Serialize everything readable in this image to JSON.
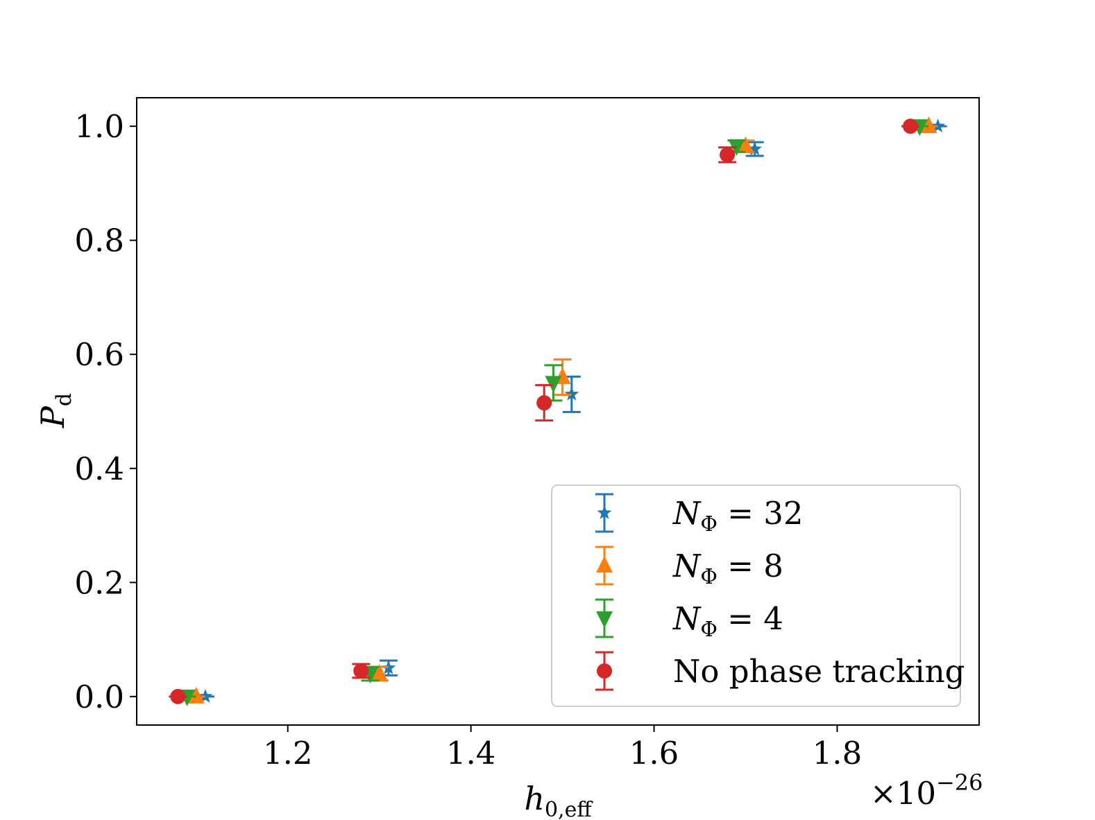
{
  "chart_data": {
    "type": "scatter",
    "title": "",
    "xlabel": {
      "main": "h",
      "sub": "0,eff"
    },
    "ylabel": {
      "main": "P",
      "sub": "d"
    },
    "x_multiplier": {
      "base": "×10",
      "exponent": "−26"
    },
    "xlim": [
      1.035,
      1.955
    ],
    "ylim": [
      -0.05,
      1.05
    ],
    "x_ticks": [
      1.2,
      1.4,
      1.6,
      1.8
    ],
    "x_tick_labels": [
      "1.2",
      "1.4",
      "1.6",
      "1.8"
    ],
    "y_ticks": [
      0.0,
      0.2,
      0.4,
      0.6,
      0.8,
      1.0
    ],
    "y_tick_labels": [
      "0.0",
      "0.2",
      "0.4",
      "0.6",
      "0.8",
      "1.0"
    ],
    "grid": false,
    "legend_position": "lower-right",
    "series": [
      {
        "name": "N_Φ = 32",
        "legend": {
          "main": "N",
          "sub": "Φ",
          "rest": " = 32"
        },
        "color": "#1f77b4",
        "marker": "star",
        "points": [
          {
            "x": 1.11,
            "y": 0.0,
            "err": 0.0
          },
          {
            "x": 1.31,
            "y": 0.05,
            "err": 0.013
          },
          {
            "x": 1.51,
            "y": 0.53,
            "err": 0.031
          },
          {
            "x": 1.71,
            "y": 0.96,
            "err": 0.012
          },
          {
            "x": 1.91,
            "y": 1.0,
            "err": 0.0
          }
        ]
      },
      {
        "name": "N_Φ = 8",
        "legend": {
          "main": "N",
          "sub": "Φ",
          "rest": " = 8"
        },
        "color": "#ff7f0e",
        "marker": "triangle-up",
        "points": [
          {
            "x": 1.1,
            "y": 0.0,
            "err": 0.0
          },
          {
            "x": 1.3,
            "y": 0.04,
            "err": 0.012
          },
          {
            "x": 1.5,
            "y": 0.56,
            "err": 0.031
          },
          {
            "x": 1.7,
            "y": 0.965,
            "err": 0.01
          },
          {
            "x": 1.9,
            "y": 1.0,
            "err": 0.0
          }
        ]
      },
      {
        "name": "N_Φ = 4",
        "legend": {
          "main": "N",
          "sub": "Φ",
          "rest": " = 4"
        },
        "color": "#2ca02c",
        "marker": "triangle-down",
        "points": [
          {
            "x": 1.09,
            "y": 0.0,
            "err": 0.0
          },
          {
            "x": 1.29,
            "y": 0.04,
            "err": 0.012
          },
          {
            "x": 1.49,
            "y": 0.55,
            "err": 0.031
          },
          {
            "x": 1.69,
            "y": 0.965,
            "err": 0.01
          },
          {
            "x": 1.89,
            "y": 1.0,
            "err": 0.0
          }
        ]
      },
      {
        "name": "No phase tracking",
        "legend": {
          "main": "",
          "sub": "",
          "rest": "No phase tracking"
        },
        "color": "#d62728",
        "marker": "circle",
        "points": [
          {
            "x": 1.08,
            "y": 0.0,
            "err": 0.0
          },
          {
            "x": 1.28,
            "y": 0.045,
            "err": 0.012
          },
          {
            "x": 1.48,
            "y": 0.515,
            "err": 0.031
          },
          {
            "x": 1.68,
            "y": 0.95,
            "err": 0.013
          },
          {
            "x": 1.88,
            "y": 1.0,
            "err": 0.0
          }
        ]
      }
    ]
  }
}
